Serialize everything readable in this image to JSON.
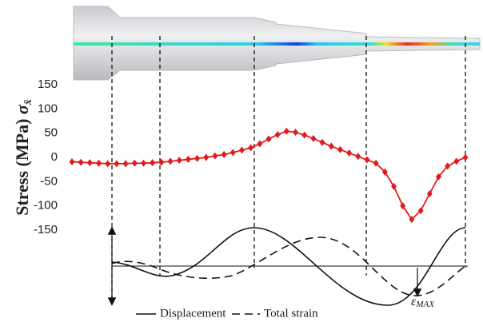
{
  "chart_data": {
    "type": "line",
    "ylabel": "Stress (MPa)",
    "ylabel_symbol": "σ",
    "ylabel_subscript": "x̄",
    "categories": [
      null,
      null,
      null,
      null,
      null,
      null,
      null,
      null,
      null,
      null,
      null,
      null,
      null,
      null,
      null,
      null,
      null,
      null,
      null,
      null,
      null,
      null,
      null,
      null,
      null,
      null,
      null,
      null,
      null,
      null,
      null,
      null,
      null,
      null,
      null,
      null,
      null,
      null,
      null,
      null,
      null,
      null,
      null,
      null,
      null
    ],
    "values": [
      -9,
      -10,
      -11,
      -12,
      -13,
      -13,
      -13,
      -12,
      -12,
      -11,
      -10,
      -8,
      -6,
      -4,
      -2,
      0,
      3,
      6,
      10,
      15,
      20,
      28,
      38,
      47,
      54,
      52,
      46,
      39,
      31,
      23,
      16,
      9,
      2,
      -5,
      -12,
      -30,
      -60,
      -100,
      -128,
      -110,
      -75,
      -40,
      -18,
      -8,
      0
    ],
    "color": "#e31a1c",
    "ylim": [
      -150,
      150
    ],
    "yticks": [
      -150,
      -100,
      -50,
      0,
      50,
      100,
      150
    ],
    "lower_legend": [
      "Displacement",
      "Total strain"
    ],
    "annotation": "ε",
    "annotation_subscript": "MAX"
  }
}
